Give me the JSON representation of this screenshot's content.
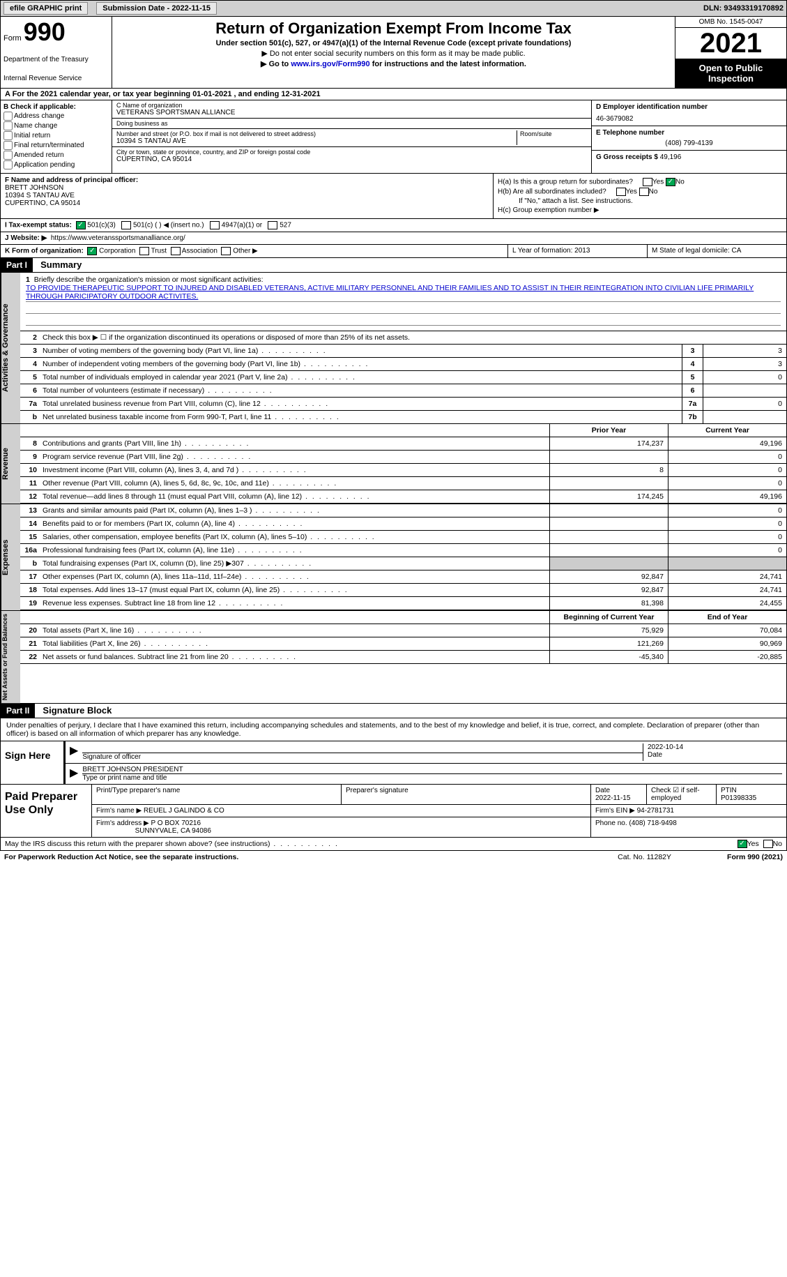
{
  "top": {
    "efile": "efile GRAPHIC print",
    "submission": "Submission Date - 2022-11-15",
    "dln": "DLN: 93493319170892"
  },
  "header": {
    "form_label": "Form",
    "form_num": "990",
    "dept": "Department of the Treasury",
    "irs": "Internal Revenue Service",
    "title": "Return of Organization Exempt From Income Tax",
    "sub1": "Under section 501(c), 527, or 4947(a)(1) of the Internal Revenue Code (except private foundations)",
    "sub2": "▶ Do not enter social security numbers on this form as it may be made public.",
    "sub3_pre": "▶ Go to ",
    "sub3_link": "www.irs.gov/Form990",
    "sub3_post": " for instructions and the latest information.",
    "omb": "OMB No. 1545-0047",
    "year": "2021",
    "open": "Open to Public Inspection"
  },
  "row_a": "A For the 2021 calendar year, or tax year beginning 01-01-2021   , and ending 12-31-2021",
  "col_b": {
    "hdr": "B Check if applicable:",
    "items": [
      "Address change",
      "Name change",
      "Initial return",
      "Final return/terminated",
      "Amended return",
      "Application pending"
    ]
  },
  "col_c": {
    "name_lbl": "C Name of organization",
    "name": "VETERANS SPORTSMAN ALLIANCE",
    "dba_lbl": "Doing business as",
    "dba": "",
    "addr_lbl": "Number and street (or P.O. box if mail is not delivered to street address)",
    "room_lbl": "Room/suite",
    "addr": "10394 S TANTAU AVE",
    "city_lbl": "City or town, state or province, country, and ZIP or foreign postal code",
    "city": "CUPERTINO, CA  95014"
  },
  "col_d": {
    "ein_lbl": "D Employer identification number",
    "ein": "46-3679082",
    "tel_lbl": "E Telephone number",
    "tel": "(408) 799-4139",
    "gross_lbl": "G Gross receipts $",
    "gross": "49,196"
  },
  "f": {
    "lbl": "F Name and address of principal officer:",
    "name": "BRETT JOHNSON",
    "addr1": "10394 S TANTAU AVE",
    "addr2": "CUPERTINO, CA  95014"
  },
  "h": {
    "a": "H(a)  Is this a group return for subordinates?",
    "b": "H(b)  Are all subordinates included?",
    "b_note": "If \"No,\" attach a list. See instructions.",
    "c": "H(c)  Group exemption number ▶"
  },
  "i": "I  Tax-exempt status:",
  "i_opts": [
    "501(c)(3)",
    "501(c) (  ) ◀ (insert no.)",
    "4947(a)(1) or",
    "527"
  ],
  "j_lbl": "J Website: ▶",
  "j_val": "https://www.veteranssportsmanalliance.org/",
  "k": "K Form of organization:",
  "k_opts": [
    "Corporation",
    "Trust",
    "Association",
    "Other ▶"
  ],
  "l": "L Year of formation: 2013",
  "m": "M State of legal domicile: CA",
  "part1": {
    "num": "Part I",
    "title": "Summary"
  },
  "summary": {
    "q1": "Briefly describe the organization's mission or most significant activities:",
    "mission": "TO PROVIDE THERAPEUTIC SUPPORT TO INJURED AND DISABLED VETERANS, ACTIVE MILITARY PERSONNEL AND THEIR FAMILIES AND TO ASSIST IN THEIR REINTEGRATION INTO CIVILIAN LIFE PRIMARILY THROUGH PARICIPATORY OUTDOOR ACTIVITES.",
    "q2": "Check this box ▶ ☐  if the organization discontinued its operations or disposed of more than 25% of its net assets.",
    "rows": [
      {
        "n": "3",
        "l": "Number of voting members of the governing body (Part VI, line 1a)",
        "b": "3",
        "v": "3"
      },
      {
        "n": "4",
        "l": "Number of independent voting members of the governing body (Part VI, line 1b)",
        "b": "4",
        "v": "3"
      },
      {
        "n": "5",
        "l": "Total number of individuals employed in calendar year 2021 (Part V, line 2a)",
        "b": "5",
        "v": "0"
      },
      {
        "n": "6",
        "l": "Total number of volunteers (estimate if necessary)",
        "b": "6",
        "v": ""
      },
      {
        "n": "7a",
        "l": "Total unrelated business revenue from Part VIII, column (C), line 12",
        "b": "7a",
        "v": "0"
      },
      {
        "n": "b",
        "l": "Net unrelated business taxable income from Form 990-T, Part I, line 11",
        "b": "7b",
        "v": ""
      }
    ]
  },
  "fin": {
    "col_prior": "Prior Year",
    "col_current": "Current Year",
    "col_begin": "Beginning of Current Year",
    "col_end": "End of Year",
    "revenue": [
      {
        "n": "8",
        "l": "Contributions and grants (Part VIII, line 1h)",
        "p": "174,237",
        "c": "49,196"
      },
      {
        "n": "9",
        "l": "Program service revenue (Part VIII, line 2g)",
        "p": "",
        "c": "0"
      },
      {
        "n": "10",
        "l": "Investment income (Part VIII, column (A), lines 3, 4, and 7d )",
        "p": "8",
        "c": "0"
      },
      {
        "n": "11",
        "l": "Other revenue (Part VIII, column (A), lines 5, 6d, 8c, 9c, 10c, and 11e)",
        "p": "",
        "c": "0"
      },
      {
        "n": "12",
        "l": "Total revenue—add lines 8 through 11 (must equal Part VIII, column (A), line 12)",
        "p": "174,245",
        "c": "49,196"
      }
    ],
    "expenses": [
      {
        "n": "13",
        "l": "Grants and similar amounts paid (Part IX, column (A), lines 1–3 )",
        "p": "",
        "c": "0"
      },
      {
        "n": "14",
        "l": "Benefits paid to or for members (Part IX, column (A), line 4)",
        "p": "",
        "c": "0"
      },
      {
        "n": "15",
        "l": "Salaries, other compensation, employee benefits (Part IX, column (A), lines 5–10)",
        "p": "",
        "c": "0"
      },
      {
        "n": "16a",
        "l": "Professional fundraising fees (Part IX, column (A), line 11e)",
        "p": "",
        "c": "0"
      },
      {
        "n": "b",
        "l": "Total fundraising expenses (Part IX, column (D), line 25) ▶307",
        "p": "shaded",
        "c": "shaded"
      },
      {
        "n": "17",
        "l": "Other expenses (Part IX, column (A), lines 11a–11d, 11f–24e)",
        "p": "92,847",
        "c": "24,741"
      },
      {
        "n": "18",
        "l": "Total expenses. Add lines 13–17 (must equal Part IX, column (A), line 25)",
        "p": "92,847",
        "c": "24,741"
      },
      {
        "n": "19",
        "l": "Revenue less expenses. Subtract line 18 from line 12",
        "p": "81,398",
        "c": "24,455"
      }
    ],
    "net": [
      {
        "n": "20",
        "l": "Total assets (Part X, line 16)",
        "p": "75,929",
        "c": "70,084"
      },
      {
        "n": "21",
        "l": "Total liabilities (Part X, line 26)",
        "p": "121,269",
        "c": "90,969"
      },
      {
        "n": "22",
        "l": "Net assets or fund balances. Subtract line 21 from line 20",
        "p": "-45,340",
        "c": "-20,885"
      }
    ]
  },
  "vert": {
    "gov": "Activities & Governance",
    "rev": "Revenue",
    "exp": "Expenses",
    "net": "Net Assets or Fund Balances"
  },
  "part2": {
    "num": "Part II",
    "title": "Signature Block"
  },
  "sig_intro": "Under penalties of perjury, I declare that I have examined this return, including accompanying schedules and statements, and to the best of my knowledge and belief, it is true, correct, and complete. Declaration of preparer (other than officer) is based on all information of which preparer has any knowledge.",
  "sign": {
    "here": "Sign Here",
    "sig_lbl": "Signature of officer",
    "date": "2022-10-14",
    "name": "BRETT JOHNSON PRESIDENT",
    "name_lbl": "Type or print name and title"
  },
  "prep": {
    "here": "Paid Preparer Use Only",
    "r1": {
      "a": "Print/Type preparer's name",
      "b": "Preparer's signature",
      "c": "Date",
      "c_v": "2022-11-15",
      "d": "Check ☑ if self-employed",
      "e": "PTIN",
      "e_v": "P01398335"
    },
    "r2": {
      "a": "Firm's name    ▶",
      "a_v": "REUEL J GALINDO & CO",
      "b": "Firm's EIN ▶",
      "b_v": "94-2781731"
    },
    "r3": {
      "a": "Firm's address ▶",
      "a_v": "P O BOX 70216",
      "a_v2": "SUNNYVALE, CA  94086",
      "b": "Phone no.",
      "b_v": "(408) 718-9498"
    }
  },
  "discuss": "May the IRS discuss this return with the preparer shown above? (see instructions)",
  "footer": {
    "a": "For Paperwork Reduction Act Notice, see the separate instructions.",
    "b": "Cat. No. 11282Y",
    "c": "Form 990 (2021)"
  }
}
